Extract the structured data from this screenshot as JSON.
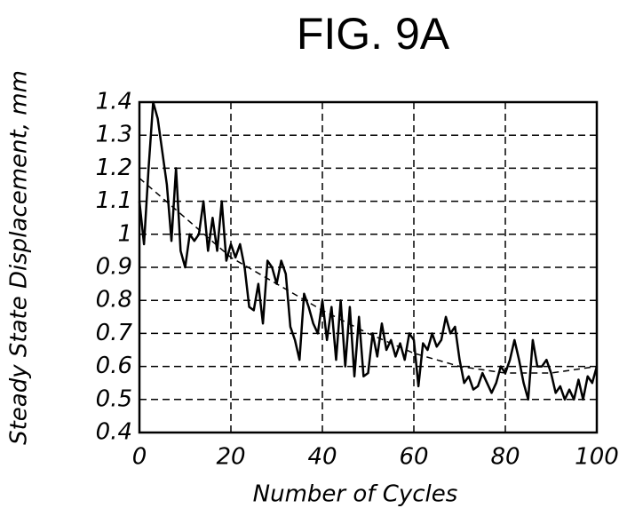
{
  "chart_data": {
    "type": "line",
    "title": "FIG. 9A",
    "xlabel": "Number of Cycles",
    "ylabel": "Steady State Displacement, mm",
    "series": [
      {
        "color": "#000000",
        "dashed": false,
        "x": [
          0,
          1,
          2,
          3,
          4,
          5,
          6,
          7,
          8,
          9,
          10,
          11,
          12,
          13,
          14,
          15,
          16,
          17,
          18,
          19,
          20,
          21,
          22,
          23,
          24,
          25,
          26,
          27,
          28,
          29,
          30,
          31,
          32,
          33,
          34,
          35,
          36,
          37,
          38,
          39,
          40,
          41,
          42,
          43,
          44,
          45,
          46,
          47,
          48,
          49,
          50,
          51,
          52,
          53,
          54,
          55,
          56,
          57,
          58,
          59,
          60,
          61,
          62,
          63,
          64,
          65,
          66,
          67,
          68,
          69,
          70,
          71,
          72,
          73,
          74,
          75,
          76,
          77,
          78,
          79,
          80,
          81,
          82,
          83,
          84,
          85,
          86,
          87,
          88,
          89,
          90,
          91,
          92,
          93,
          94,
          95,
          96,
          97,
          98,
          99,
          100
        ],
        "values": [
          1.1,
          0.97,
          1.2,
          1.4,
          1.35,
          1.25,
          1.15,
          0.98,
          1.2,
          0.95,
          0.9,
          1.0,
          0.98,
          1.0,
          1.1,
          0.95,
          1.05,
          0.95,
          1.1,
          0.92,
          0.97,
          0.93,
          0.97,
          0.9,
          0.78,
          0.77,
          0.85,
          0.73,
          0.92,
          0.9,
          0.85,
          0.92,
          0.88,
          0.72,
          0.68,
          0.62,
          0.82,
          0.78,
          0.73,
          0.7,
          0.8,
          0.68,
          0.78,
          0.62,
          0.8,
          0.6,
          0.78,
          0.57,
          0.75,
          0.57,
          0.58,
          0.7,
          0.63,
          0.73,
          0.65,
          0.68,
          0.63,
          0.67,
          0.62,
          0.7,
          0.68,
          0.54,
          0.67,
          0.65,
          0.7,
          0.66,
          0.68,
          0.75,
          0.7,
          0.72,
          0.62,
          0.55,
          0.57,
          0.53,
          0.54,
          0.58,
          0.55,
          0.52,
          0.55,
          0.6,
          0.58,
          0.62,
          0.68,
          0.62,
          0.55,
          0.5,
          0.68,
          0.6,
          0.6,
          0.62,
          0.58,
          0.52,
          0.54,
          0.5,
          0.53,
          0.5,
          0.56,
          0.5,
          0.57,
          0.55,
          0.6
        ]
      },
      {
        "color": "#000000",
        "dashed": true,
        "x": [
          0,
          10,
          20,
          30,
          40,
          50,
          60,
          70,
          80,
          90,
          100
        ],
        "values": [
          1.17,
          1.05,
          0.93,
          0.85,
          0.77,
          0.7,
          0.64,
          0.6,
          0.58,
          0.58,
          0.6
        ]
      }
    ],
    "xlim": [
      0,
      100
    ],
    "xticks": [
      0,
      20,
      40,
      60,
      80,
      100
    ],
    "ylim": [
      0.4,
      1.4
    ],
    "yticks": [
      0.4,
      0.5,
      0.6,
      0.7,
      0.8,
      0.9,
      1,
      1.1,
      1.2,
      1.3,
      1.4
    ],
    "grid": true
  }
}
